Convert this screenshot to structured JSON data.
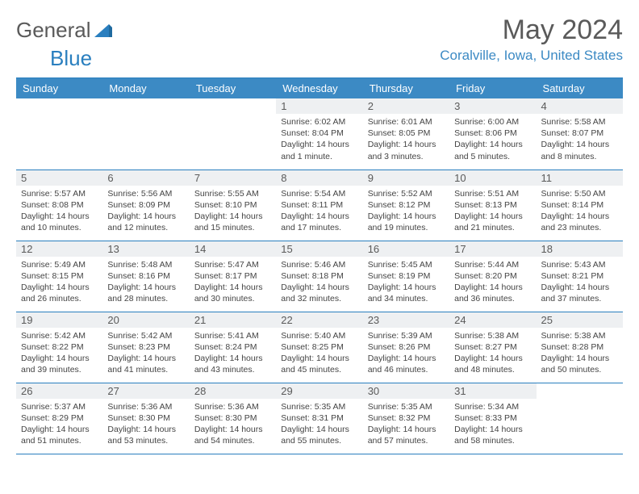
{
  "logo": {
    "text1": "General",
    "text2": "Blue"
  },
  "title": "May 2024",
  "location": "Coralville, Iowa, United States",
  "colors": {
    "accent": "#3c8ac4",
    "border": "#2a7fbf",
    "daynum_bg": "#eef0f2",
    "text": "#5a5a5a"
  },
  "daynames": [
    "Sunday",
    "Monday",
    "Tuesday",
    "Wednesday",
    "Thursday",
    "Friday",
    "Saturday"
  ],
  "weeks": [
    [
      null,
      null,
      null,
      {
        "n": "1",
        "sr": "6:02 AM",
        "ss": "8:04 PM",
        "dl": "14 hours and 1 minute."
      },
      {
        "n": "2",
        "sr": "6:01 AM",
        "ss": "8:05 PM",
        "dl": "14 hours and 3 minutes."
      },
      {
        "n": "3",
        "sr": "6:00 AM",
        "ss": "8:06 PM",
        "dl": "14 hours and 5 minutes."
      },
      {
        "n": "4",
        "sr": "5:58 AM",
        "ss": "8:07 PM",
        "dl": "14 hours and 8 minutes."
      }
    ],
    [
      {
        "n": "5",
        "sr": "5:57 AM",
        "ss": "8:08 PM",
        "dl": "14 hours and 10 minutes."
      },
      {
        "n": "6",
        "sr": "5:56 AM",
        "ss": "8:09 PM",
        "dl": "14 hours and 12 minutes."
      },
      {
        "n": "7",
        "sr": "5:55 AM",
        "ss": "8:10 PM",
        "dl": "14 hours and 15 minutes."
      },
      {
        "n": "8",
        "sr": "5:54 AM",
        "ss": "8:11 PM",
        "dl": "14 hours and 17 minutes."
      },
      {
        "n": "9",
        "sr": "5:52 AM",
        "ss": "8:12 PM",
        "dl": "14 hours and 19 minutes."
      },
      {
        "n": "10",
        "sr": "5:51 AM",
        "ss": "8:13 PM",
        "dl": "14 hours and 21 minutes."
      },
      {
        "n": "11",
        "sr": "5:50 AM",
        "ss": "8:14 PM",
        "dl": "14 hours and 23 minutes."
      }
    ],
    [
      {
        "n": "12",
        "sr": "5:49 AM",
        "ss": "8:15 PM",
        "dl": "14 hours and 26 minutes."
      },
      {
        "n": "13",
        "sr": "5:48 AM",
        "ss": "8:16 PM",
        "dl": "14 hours and 28 minutes."
      },
      {
        "n": "14",
        "sr": "5:47 AM",
        "ss": "8:17 PM",
        "dl": "14 hours and 30 minutes."
      },
      {
        "n": "15",
        "sr": "5:46 AM",
        "ss": "8:18 PM",
        "dl": "14 hours and 32 minutes."
      },
      {
        "n": "16",
        "sr": "5:45 AM",
        "ss": "8:19 PM",
        "dl": "14 hours and 34 minutes."
      },
      {
        "n": "17",
        "sr": "5:44 AM",
        "ss": "8:20 PM",
        "dl": "14 hours and 36 minutes."
      },
      {
        "n": "18",
        "sr": "5:43 AM",
        "ss": "8:21 PM",
        "dl": "14 hours and 37 minutes."
      }
    ],
    [
      {
        "n": "19",
        "sr": "5:42 AM",
        "ss": "8:22 PM",
        "dl": "14 hours and 39 minutes."
      },
      {
        "n": "20",
        "sr": "5:42 AM",
        "ss": "8:23 PM",
        "dl": "14 hours and 41 minutes."
      },
      {
        "n": "21",
        "sr": "5:41 AM",
        "ss": "8:24 PM",
        "dl": "14 hours and 43 minutes."
      },
      {
        "n": "22",
        "sr": "5:40 AM",
        "ss": "8:25 PM",
        "dl": "14 hours and 45 minutes."
      },
      {
        "n": "23",
        "sr": "5:39 AM",
        "ss": "8:26 PM",
        "dl": "14 hours and 46 minutes."
      },
      {
        "n": "24",
        "sr": "5:38 AM",
        "ss": "8:27 PM",
        "dl": "14 hours and 48 minutes."
      },
      {
        "n": "25",
        "sr": "5:38 AM",
        "ss": "8:28 PM",
        "dl": "14 hours and 50 minutes."
      }
    ],
    [
      {
        "n": "26",
        "sr": "5:37 AM",
        "ss": "8:29 PM",
        "dl": "14 hours and 51 minutes."
      },
      {
        "n": "27",
        "sr": "5:36 AM",
        "ss": "8:30 PM",
        "dl": "14 hours and 53 minutes."
      },
      {
        "n": "28",
        "sr": "5:36 AM",
        "ss": "8:30 PM",
        "dl": "14 hours and 54 minutes."
      },
      {
        "n": "29",
        "sr": "5:35 AM",
        "ss": "8:31 PM",
        "dl": "14 hours and 55 minutes."
      },
      {
        "n": "30",
        "sr": "5:35 AM",
        "ss": "8:32 PM",
        "dl": "14 hours and 57 minutes."
      },
      {
        "n": "31",
        "sr": "5:34 AM",
        "ss": "8:33 PM",
        "dl": "14 hours and 58 minutes."
      },
      null
    ]
  ],
  "labels": {
    "sunrise": "Sunrise:",
    "sunset": "Sunset:",
    "daylight": "Daylight:"
  }
}
